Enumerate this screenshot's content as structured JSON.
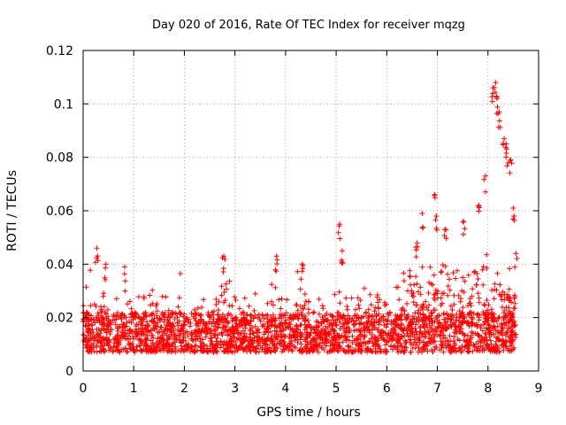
{
  "chart_data": {
    "type": "scatter",
    "title": "Day 020 of 2016, Rate Of TEC Index for receiver mqzg",
    "xlabel": "GPS time / hours",
    "ylabel": "ROTI / TECUs",
    "xlim": [
      0,
      9
    ],
    "ylim": [
      0,
      0.12
    ],
    "xticks": [
      0,
      1,
      2,
      3,
      4,
      5,
      6,
      7,
      8,
      9
    ],
    "yticks": [
      0,
      0.02,
      0.04,
      0.06,
      0.08,
      0.1,
      0.12
    ],
    "xtick_labels": [
      "0",
      "1",
      "2",
      "3",
      "4",
      "5",
      "6",
      "7",
      "8",
      "9"
    ],
    "ytick_labels": [
      "0",
      "0.02",
      "0.04",
      "0.06",
      "0.08",
      "0.1",
      "0.12"
    ],
    "grid": true,
    "marker": "+",
    "color": "#ff0000",
    "series": [
      {
        "name": "ROTI",
        "x_range": [
          0,
          8.55
        ],
        "baseline_band": [
          0.007,
          0.022
        ],
        "highlight_points": [
          {
            "x": 0.27,
            "y": 0.046
          },
          {
            "x": 0.45,
            "y": 0.04
          },
          {
            "x": 0.82,
            "y": 0.039
          },
          {
            "x": 2.78,
            "y": 0.043
          },
          {
            "x": 3.82,
            "y": 0.043
          },
          {
            "x": 4.33,
            "y": 0.04
          },
          {
            "x": 5.07,
            "y": 0.055
          },
          {
            "x": 5.12,
            "y": 0.045
          },
          {
            "x": 6.6,
            "y": 0.048
          },
          {
            "x": 6.7,
            "y": 0.059
          },
          {
            "x": 6.95,
            "y": 0.066
          },
          {
            "x": 6.98,
            "y": 0.058
          },
          {
            "x": 7.15,
            "y": 0.053
          },
          {
            "x": 7.52,
            "y": 0.056
          },
          {
            "x": 7.82,
            "y": 0.062
          },
          {
            "x": 7.95,
            "y": 0.073
          },
          {
            "x": 8.1,
            "y": 0.106
          },
          {
            "x": 8.15,
            "y": 0.108
          },
          {
            "x": 8.18,
            "y": 0.102
          },
          {
            "x": 8.22,
            "y": 0.097
          },
          {
            "x": 8.32,
            "y": 0.087
          },
          {
            "x": 8.36,
            "y": 0.085
          },
          {
            "x": 8.4,
            "y": 0.078
          },
          {
            "x": 8.45,
            "y": 0.079
          },
          {
            "x": 8.5,
            "y": 0.061
          },
          {
            "x": 8.55,
            "y": 0.044
          }
        ]
      }
    ]
  }
}
